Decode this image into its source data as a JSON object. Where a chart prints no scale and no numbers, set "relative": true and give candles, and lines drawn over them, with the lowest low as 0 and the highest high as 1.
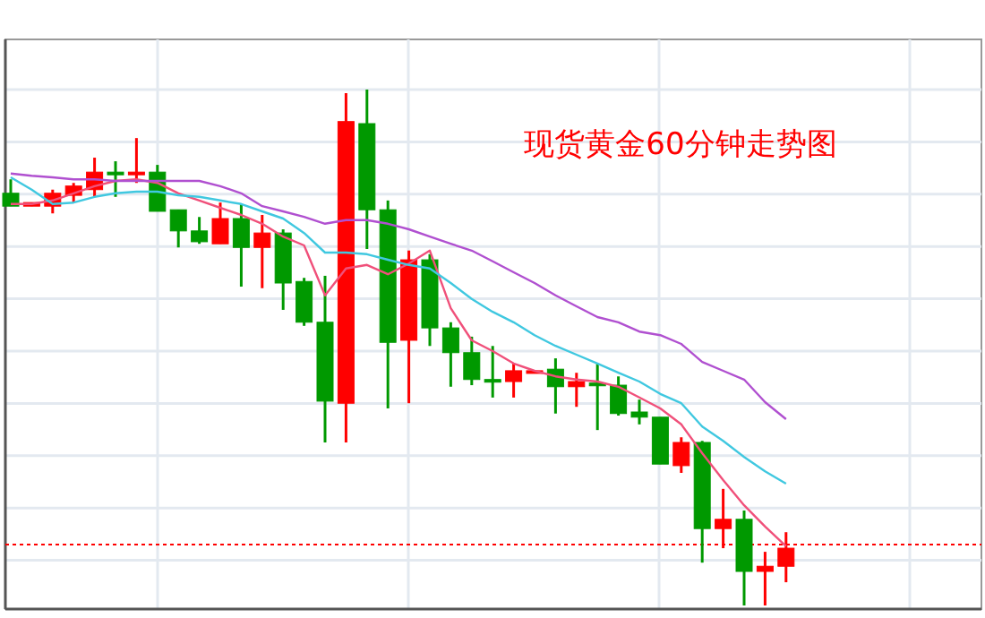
{
  "chart_data": {
    "type": "candlestick",
    "title": "现货黄金60分钟走势图",
    "relative": true,
    "grid": true,
    "categories": [
      null,
      null,
      null,
      null,
      null,
      null,
      null,
      null,
      null,
      null,
      null,
      null,
      null,
      null,
      null,
      null,
      null,
      null,
      null,
      null,
      null,
      null,
      null,
      null,
      null,
      null,
      null,
      null,
      null,
      null,
      null,
      null,
      null,
      null,
      null,
      null,
      null,
      null
    ],
    "ohlc": [
      [
        0.799,
        0.826,
        0.774,
        0.774
      ],
      [
        0.774,
        0.781,
        0.774,
        0.781
      ],
      [
        0.774,
        0.806,
        0.76,
        0.799
      ],
      [
        0.795,
        0.819,
        0.781,
        0.813
      ],
      [
        0.806,
        0.868,
        0.792,
        0.84
      ],
      [
        0.84,
        0.861,
        0.792,
        0.838
      ],
      [
        0.838,
        0.906,
        0.819,
        0.84
      ],
      [
        0.84,
        0.854,
        0.764,
        0.764
      ],
      [
        0.767,
        0.767,
        0.694,
        0.726
      ],
      [
        0.726,
        0.753,
        0.701,
        0.705
      ],
      [
        0.701,
        0.781,
        0.701,
        0.75
      ],
      [
        0.75,
        0.778,
        0.618,
        0.694
      ],
      [
        0.694,
        0.757,
        0.615,
        0.722
      ],
      [
        0.722,
        0.729,
        0.573,
        0.625
      ],
      [
        0.628,
        0.635,
        0.542,
        0.549
      ],
      [
        0.549,
        0.639,
        0.316,
        0.396
      ],
      [
        0.392,
        0.993,
        0.316,
        0.938
      ],
      [
        0.934,
        1,
        0.691,
        0.767
      ],
      [
        0.767,
        0.785,
        0.382,
        0.51
      ],
      [
        0.514,
        0.688,
        0.392,
        0.67
      ],
      [
        0.67,
        0.681,
        0.503,
        0.538
      ],
      [
        0.538,
        0.549,
        0.424,
        0.49
      ],
      [
        0.49,
        0.521,
        0.427,
        0.438
      ],
      [
        0.438,
        0.503,
        0.403,
        0.434
      ],
      [
        0.434,
        0.469,
        0.403,
        0.455
      ],
      [
        0.453,
        0.455,
        0.451,
        0.455
      ],
      [
        0.458,
        0.479,
        0.372,
        0.424
      ],
      [
        0.424,
        0.451,
        0.385,
        0.434
      ],
      [
        0.431,
        0.469,
        0.34,
        0.427
      ],
      [
        0.427,
        0.444,
        0.368,
        0.372
      ],
      [
        0.375,
        0.399,
        0.351,
        0.365
      ],
      [
        0.365,
        0.365,
        0.274,
        0.274
      ],
      [
        0.271,
        0.326,
        0.257,
        0.316
      ],
      [
        0.316,
        0.319,
        0.083,
        0.149
      ],
      [
        0.149,
        0.226,
        0.111,
        0.167
      ],
      [
        0.167,
        0.184,
        0,
        0.066
      ],
      [
        0.066,
        0.104,
        0,
        0.076
      ],
      [
        0.076,
        0.142,
        0.045,
        0.111
      ]
    ],
    "colors": [
      "#009900",
      "#ff0000",
      "#ff0000",
      "#ff0000",
      "#ff0000",
      "#009900",
      "#ff0000",
      "#009900",
      "#009900",
      "#009900",
      "#ff0000",
      "#009900",
      "#ff0000",
      "#009900",
      "#009900",
      "#009900",
      "#ff0000",
      "#009900",
      "#009900",
      "#ff0000",
      "#009900",
      "#009900",
      "#009900",
      "#009900",
      "#ff0000",
      "#ff0000",
      "#009900",
      "#ff0000",
      "#009900",
      "#009900",
      "#009900",
      "#009900",
      "#ff0000",
      "#009900",
      "#ff0000",
      "#009900",
      "#ff0000",
      "#ff0000"
    ],
    "series": [
      {
        "type": "line",
        "color": "#f0507a",
        "values": [
          0.778,
          0.778,
          0.785,
          0.799,
          0.813,
          0.823,
          0.826,
          0.819,
          0.799,
          0.785,
          0.771,
          0.757,
          0.74,
          0.715,
          0.698,
          0.601,
          0.653,
          0.66,
          0.642,
          0.663,
          0.688,
          0.576,
          0.514,
          0.493,
          0.469,
          0.455,
          0.444,
          0.438,
          0.434,
          0.424,
          0.403,
          0.382,
          0.351,
          0.295,
          0.243,
          0.194,
          0.153,
          0.115
        ]
      },
      {
        "type": "line",
        "color": "#40c8e0",
        "values": [
          0.83,
          0.806,
          0.778,
          0.781,
          0.792,
          0.799,
          0.802,
          0.802,
          0.795,
          0.792,
          0.785,
          0.778,
          0.764,
          0.75,
          0.722,
          0.684,
          0.684,
          0.681,
          0.67,
          0.66,
          0.653,
          0.625,
          0.594,
          0.569,
          0.549,
          0.524,
          0.503,
          0.486,
          0.469,
          0.451,
          0.434,
          0.41,
          0.392,
          0.347,
          0.319,
          0.288,
          0.26,
          0.236
        ]
      },
      {
        "type": "line",
        "color": "#b050d0",
        "values": [
          0.837,
          0.833,
          0.83,
          0.826,
          0.826,
          0.823,
          0.823,
          0.823,
          0.823,
          0.823,
          0.813,
          0.799,
          0.774,
          0.764,
          0.753,
          0.74,
          0.747,
          0.747,
          0.74,
          0.729,
          0.715,
          0.701,
          0.688,
          0.667,
          0.646,
          0.625,
          0.601,
          0.58,
          0.559,
          0.549,
          0.531,
          0.524,
          0.507,
          0.472,
          0.455,
          0.438,
          0.394,
          0.361
        ]
      }
    ],
    "ref_lines": [
      {
        "axis": "y",
        "value": 0.118,
        "color": "#ff0000",
        "line_style": "dotted"
      }
    ]
  }
}
